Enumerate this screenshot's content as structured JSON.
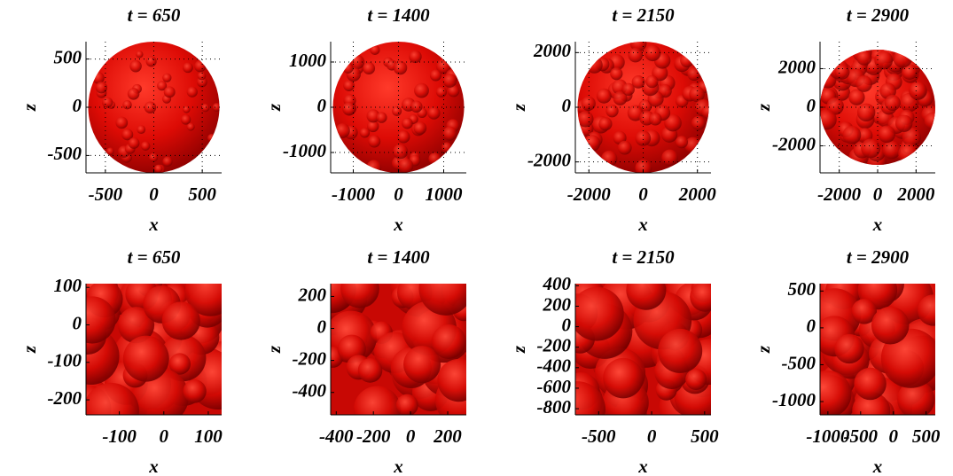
{
  "chart_data": [
    {
      "type": "surface",
      "shape": "sphere",
      "title": "t = 650",
      "xlabel": "x",
      "ylabel": "z",
      "xlim": [
        -700,
        700
      ],
      "ylim": [
        -680,
        680
      ],
      "xticks": [
        -500,
        0,
        500
      ],
      "yticks": [
        -500,
        0,
        500
      ],
      "grid": true
    },
    {
      "type": "surface",
      "shape": "sphere",
      "title": "t = 1400",
      "xlabel": "x",
      "ylabel": "z",
      "xlim": [
        -1500,
        1500
      ],
      "ylim": [
        -1450,
        1450
      ],
      "xticks": [
        -1000,
        0,
        1000
      ],
      "yticks": [
        -1000,
        0,
        1000
      ],
      "grid": true
    },
    {
      "type": "surface",
      "shape": "sphere",
      "title": "t = 2150",
      "xlabel": "x",
      "ylabel": "z",
      "xlim": [
        -2500,
        2500
      ],
      "ylim": [
        -2400,
        2400
      ],
      "xticks": [
        -2000,
        0,
        2000
      ],
      "yticks": [
        -2000,
        0,
        2000
      ],
      "grid": true
    },
    {
      "type": "surface",
      "shape": "sphere",
      "title": "t = 2900",
      "xlabel": "x",
      "ylabel": "z",
      "xlim": [
        -3000,
        3000
      ],
      "ylim": [
        -3400,
        3400
      ],
      "xticks": [
        -2000,
        0,
        2000
      ],
      "yticks": [
        -2000,
        0,
        2000
      ],
      "grid": true
    },
    {
      "type": "surface",
      "shape": "slab",
      "title": "t = 650",
      "xlabel": "x",
      "ylabel": "z",
      "xlim": [
        -175,
        130
      ],
      "ylim": [
        -240,
        110
      ],
      "xticks": [
        -100,
        0,
        100
      ],
      "yticks": [
        -200,
        -100,
        0,
        100
      ],
      "grid": false
    },
    {
      "type": "surface",
      "shape": "slab",
      "title": "t = 1400",
      "xlabel": "x",
      "ylabel": "z",
      "xlim": [
        -430,
        300
      ],
      "ylim": [
        -540,
        280
      ],
      "xticks": [
        -400,
        -200,
        0,
        200
      ],
      "yticks": [
        -400,
        -200,
        0,
        200
      ],
      "grid": false
    },
    {
      "type": "surface",
      "shape": "slab",
      "title": "t = 2150",
      "xlabel": "x",
      "ylabel": "z",
      "xlim": [
        -720,
        560
      ],
      "ylim": [
        -860,
        420
      ],
      "xticks": [
        -500,
        0,
        500
      ],
      "yticks": [
        -800,
        -600,
        -400,
        -200,
        0,
        200,
        400
      ],
      "grid": false
    },
    {
      "type": "surface",
      "shape": "slab",
      "title": "t = 2900",
      "xlabel": "x",
      "ylabel": "z",
      "xlim": [
        -1120,
        640
      ],
      "ylim": [
        -1180,
        600
      ],
      "xticks": [
        -1000,
        -500,
        0,
        500
      ],
      "yticks": [
        -1000,
        -500,
        0,
        500
      ],
      "grid": false
    }
  ]
}
